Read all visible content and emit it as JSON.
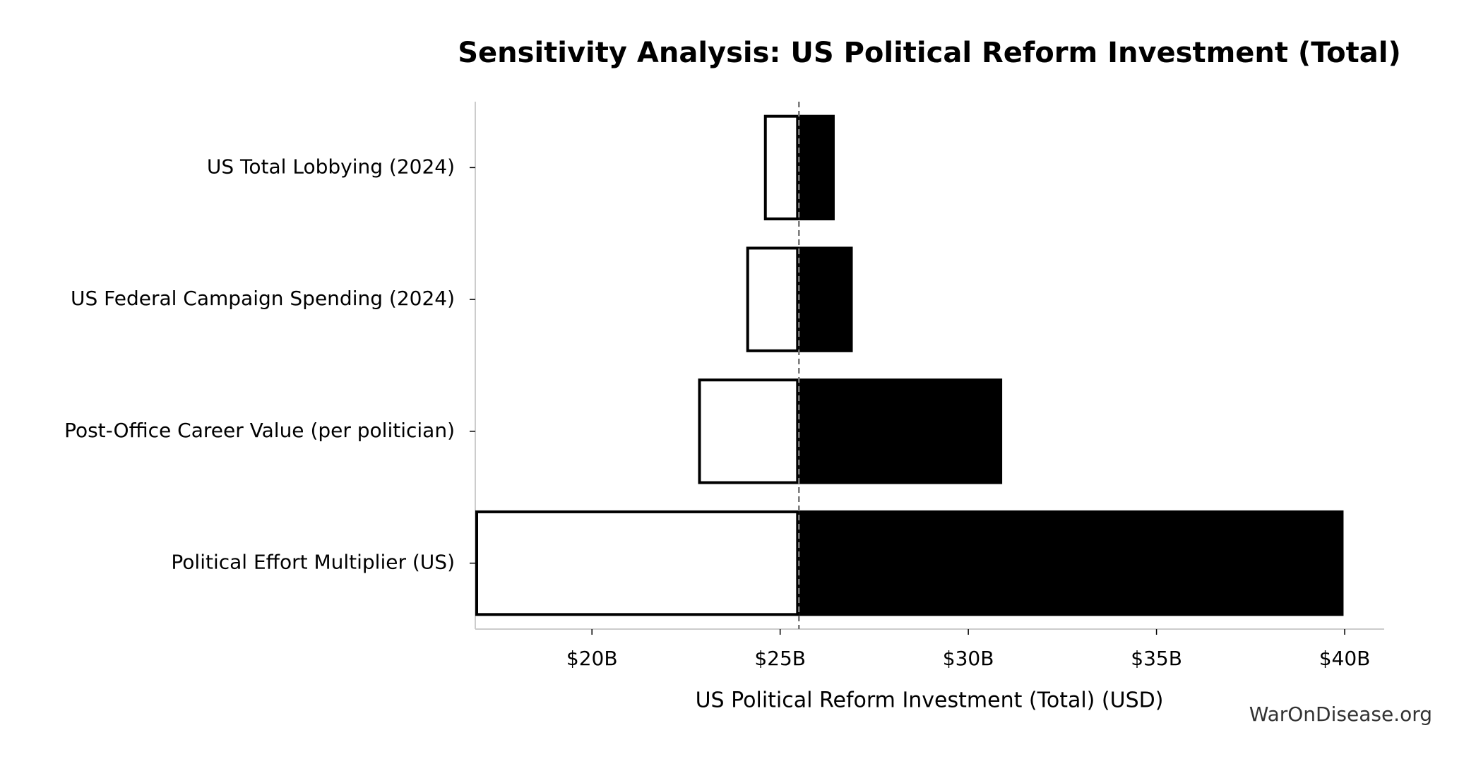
{
  "chart_data": {
    "type": "tornado",
    "title": "Sensitivity Analysis: US Political Reform Investment (Total)",
    "x_label": "US Political Reform Investment (Total) (USD)",
    "watermark": "WarOnDisease.org",
    "categories": [
      "US Total Lobbying (2024)",
      "US Federal Campaign Spending (2024)",
      "Post-Office Career Value (per politician)",
      "Political Effort Multiplier (US)"
    ],
    "baseline": 25.5,
    "low": [
      24.57,
      24.1,
      22.82,
      16.9
    ],
    "high": [
      26.45,
      26.93,
      30.9,
      39.97
    ],
    "low_color": "#ffffff",
    "high_color": "#000000",
    "xlim": [
      16.9,
      41.05
    ],
    "xticks": [
      {
        "value": 20,
        "label": "$20B"
      },
      {
        "value": 25,
        "label": "$25B"
      },
      {
        "value": 30,
        "label": "$30B"
      },
      {
        "value": 35,
        "label": "$35B"
      },
      {
        "value": 40,
        "label": "$40B"
      }
    ]
  }
}
